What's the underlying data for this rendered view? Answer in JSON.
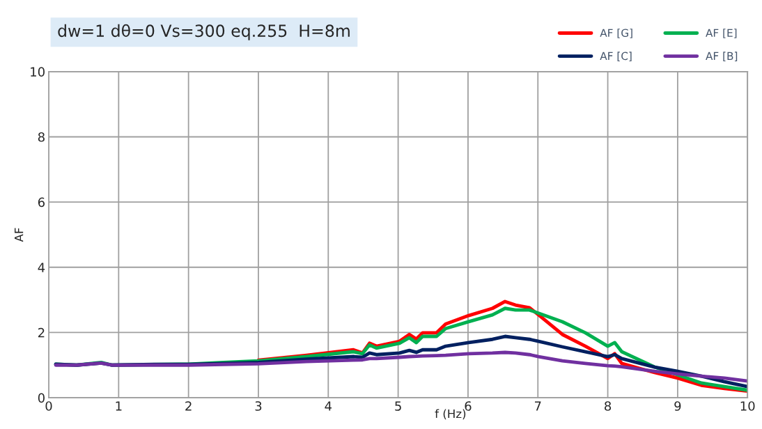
{
  "chart_data": {
    "type": "line",
    "title": "dw=1 dθ=0 Vs=300 eq.255  H=8m",
    "xlabel": "f (Hz)",
    "ylabel": "AF",
    "x": [
      0.1,
      0.4,
      0.75,
      0.9,
      1.5,
      2,
      2.5,
      3,
      3.69,
      4.36,
      4.49,
      4.59,
      4.69,
      5.02,
      5.16,
      5.26,
      5.35,
      5.55,
      5.68,
      6.01,
      6.35,
      6.53,
      6.68,
      6.88,
      7.01,
      7.35,
      7.68,
      8.0,
      8.1,
      8.2,
      8.67,
      9.0,
      9.34,
      9.67,
      10.0
    ],
    "series": [
      {
        "name": "AF [G]",
        "color": "#ff0000",
        "values": [
          null,
          null,
          null,
          null,
          null,
          null,
          null,
          1.15,
          1.3,
          1.47,
          1.37,
          1.67,
          1.58,
          1.73,
          1.94,
          1.8,
          1.99,
          1.99,
          2.26,
          2.52,
          2.74,
          2.95,
          2.84,
          2.76,
          2.54,
          1.94,
          1.58,
          1.2,
          1.35,
          1.05,
          0.77,
          0.6,
          0.38,
          0.28,
          0.2
        ]
      },
      {
        "name": "AF [E]",
        "color": "#00b050",
        "values": [
          1.03,
          1.0,
          1.08,
          1.0,
          null,
          1.03,
          1.08,
          1.13,
          1.26,
          1.41,
          1.35,
          1.62,
          1.52,
          1.67,
          1.84,
          1.69,
          1.88,
          1.88,
          2.12,
          2.33,
          2.54,
          2.74,
          2.69,
          2.69,
          2.59,
          2.33,
          1.99,
          1.58,
          1.69,
          1.41,
          0.94,
          0.7,
          0.45,
          0.34,
          0.23
        ]
      },
      {
        "name": "AF [C]",
        "color": "#002060",
        "values": [
          1.03,
          1.0,
          1.06,
          1.0,
          1.02,
          1.02,
          1.05,
          1.08,
          1.18,
          1.26,
          1.24,
          1.37,
          1.32,
          1.37,
          1.45,
          1.39,
          1.47,
          1.47,
          1.58,
          1.69,
          1.79,
          1.88,
          1.84,
          1.79,
          1.73,
          1.56,
          1.41,
          1.26,
          1.32,
          1.2,
          0.94,
          0.81,
          0.66,
          0.49,
          0.34
        ]
      },
      {
        "name": "AF [B]",
        "color": "#7030a0",
        "values": [
          1.0,
          1.0,
          1.06,
          1.0,
          1.0,
          1.0,
          1.02,
          1.04,
          1.11,
          1.15,
          1.16,
          1.2,
          1.2,
          1.24,
          1.26,
          1.27,
          1.28,
          1.29,
          1.3,
          1.35,
          1.37,
          1.39,
          1.37,
          1.32,
          1.26,
          1.13,
          1.05,
          0.98,
          0.97,
          0.95,
          0.81,
          0.73,
          0.66,
          0.6,
          0.51
        ]
      }
    ],
    "xlim": [
      0,
      10
    ],
    "ylim": [
      0,
      10
    ],
    "xticks": [
      0,
      1,
      2,
      3,
      4,
      5,
      6,
      7,
      8,
      9,
      10
    ],
    "yticks": [
      0,
      2,
      4,
      6,
      8,
      10
    ],
    "grid": true,
    "legend": "top right",
    "line_style": "solid",
    "marker": "none"
  }
}
